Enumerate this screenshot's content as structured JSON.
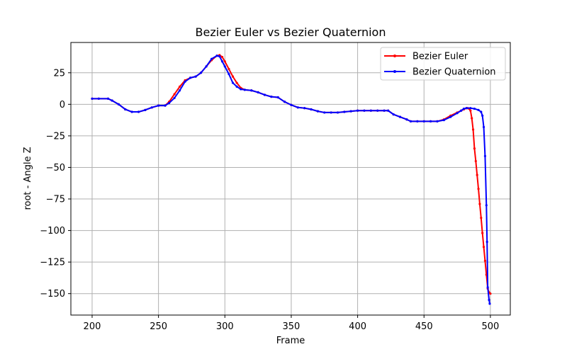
{
  "chart_data": {
    "type": "line",
    "title": "Bezier Euler vs Bezier Quaternion",
    "xlabel": "Frame",
    "ylabel": "root - Angle Z",
    "xlim": [
      184,
      515
    ],
    "ylim": [
      -167,
      49
    ],
    "xticks": [
      200,
      250,
      300,
      350,
      400,
      450,
      500
    ],
    "yticks": [
      25,
      0,
      -25,
      -50,
      -75,
      -100,
      -125,
      -150
    ],
    "grid": true,
    "legend_position": "top-right",
    "series": [
      {
        "name": "Bezier Euler",
        "color": "#ff0000",
        "points": [
          [
            200,
            4.5
          ],
          [
            205,
            4.5
          ],
          [
            212,
            4.5
          ],
          [
            215,
            3
          ],
          [
            220,
            0
          ],
          [
            225,
            -4
          ],
          [
            230,
            -6
          ],
          [
            235,
            -6
          ],
          [
            240,
            -4.5
          ],
          [
            245,
            -2.5
          ],
          [
            250,
            -1
          ],
          [
            255,
            -1
          ],
          [
            258,
            2
          ],
          [
            262,
            8
          ],
          [
            266,
            14
          ],
          [
            270,
            19
          ],
          [
            274,
            21
          ],
          [
            278,
            22
          ],
          [
            282,
            25
          ],
          [
            286,
            30
          ],
          [
            290,
            35
          ],
          [
            294,
            38.5
          ],
          [
            296,
            39
          ],
          [
            298,
            37.5
          ],
          [
            300,
            34
          ],
          [
            303,
            28
          ],
          [
            306,
            22
          ],
          [
            309,
            17
          ],
          [
            312,
            13
          ],
          [
            315,
            11.5
          ],
          [
            320,
            11
          ],
          [
            325,
            9.5
          ],
          [
            330,
            7.5
          ],
          [
            335,
            6
          ],
          [
            340,
            5.5
          ],
          [
            345,
            2
          ],
          [
            350,
            -0.5
          ],
          [
            355,
            -2.5
          ],
          [
            360,
            -3
          ],
          [
            365,
            -4
          ],
          [
            370,
            -5.5
          ],
          [
            375,
            -6.5
          ],
          [
            380,
            -6.5
          ],
          [
            385,
            -6.5
          ],
          [
            390,
            -6
          ],
          [
            395,
            -5.5
          ],
          [
            400,
            -5
          ],
          [
            405,
            -5
          ],
          [
            410,
            -5
          ],
          [
            415,
            -5
          ],
          [
            420,
            -5
          ],
          [
            423,
            -5
          ],
          [
            427,
            -8
          ],
          [
            432,
            -10
          ],
          [
            437,
            -12
          ],
          [
            440,
            -13.5
          ],
          [
            445,
            -13.5
          ],
          [
            450,
            -13.5
          ],
          [
            455,
            -13.5
          ],
          [
            460,
            -13.5
          ],
          [
            465,
            -12
          ],
          [
            470,
            -9
          ],
          [
            475,
            -6.5
          ],
          [
            478,
            -5
          ],
          [
            480,
            -4
          ],
          [
            482,
            -3
          ],
          [
            483,
            -3
          ],
          [
            484,
            -3.5
          ],
          [
            485,
            -5
          ],
          [
            486,
            -11
          ],
          [
            487,
            -20
          ],
          [
            488,
            -35
          ],
          [
            489,
            -45
          ],
          [
            490,
            -56
          ],
          [
            491,
            -67
          ],
          [
            492,
            -79
          ],
          [
            493,
            -90
          ],
          [
            494,
            -102
          ],
          [
            495,
            -113
          ],
          [
            496,
            -124
          ],
          [
            497,
            -135
          ],
          [
            498,
            -146
          ],
          [
            499,
            -149
          ],
          [
            500,
            -150
          ]
        ]
      },
      {
        "name": "Bezier Quaternion",
        "color": "#0000ff",
        "points": [
          [
            200,
            4.5
          ],
          [
            205,
            4.5
          ],
          [
            212,
            4.5
          ],
          [
            215,
            3
          ],
          [
            220,
            0
          ],
          [
            225,
            -4
          ],
          [
            230,
            -6
          ],
          [
            235,
            -6
          ],
          [
            240,
            -4.5
          ],
          [
            245,
            -2.5
          ],
          [
            250,
            -1
          ],
          [
            255,
            -1
          ],
          [
            258,
            1
          ],
          [
            262,
            5
          ],
          [
            266,
            11
          ],
          [
            270,
            18
          ],
          [
            274,
            21
          ],
          [
            278,
            22
          ],
          [
            282,
            25
          ],
          [
            286,
            30
          ],
          [
            290,
            36
          ],
          [
            294,
            38.5
          ],
          [
            296,
            38
          ],
          [
            298,
            34
          ],
          [
            300,
            30
          ],
          [
            303,
            24
          ],
          [
            306,
            17
          ],
          [
            309,
            14
          ],
          [
            312,
            12
          ],
          [
            315,
            11.5
          ],
          [
            320,
            11
          ],
          [
            325,
            9.5
          ],
          [
            330,
            7.5
          ],
          [
            335,
            6
          ],
          [
            340,
            5.5
          ],
          [
            345,
            2
          ],
          [
            350,
            -0.5
          ],
          [
            355,
            -2.5
          ],
          [
            360,
            -3
          ],
          [
            365,
            -4
          ],
          [
            370,
            -5.5
          ],
          [
            375,
            -6.5
          ],
          [
            380,
            -6.5
          ],
          [
            385,
            -6.5
          ],
          [
            390,
            -6
          ],
          [
            395,
            -5.5
          ],
          [
            400,
            -5
          ],
          [
            405,
            -5
          ],
          [
            410,
            -5
          ],
          [
            415,
            -5
          ],
          [
            420,
            -5
          ],
          [
            423,
            -5
          ],
          [
            427,
            -8
          ],
          [
            432,
            -10
          ],
          [
            437,
            -12
          ],
          [
            440,
            -13.5
          ],
          [
            445,
            -13.5
          ],
          [
            450,
            -13.5
          ],
          [
            455,
            -13.5
          ],
          [
            460,
            -13.5
          ],
          [
            465,
            -12.5
          ],
          [
            470,
            -10
          ],
          [
            475,
            -7
          ],
          [
            478,
            -5
          ],
          [
            480,
            -3.5
          ],
          [
            482,
            -3
          ],
          [
            485,
            -3
          ],
          [
            488,
            -3.5
          ],
          [
            491,
            -4.5
          ],
          [
            493,
            -6
          ],
          [
            494,
            -9
          ],
          [
            495,
            -18
          ],
          [
            496,
            -41
          ],
          [
            497,
            -80
          ],
          [
            497.5,
            -109
          ],
          [
            498,
            -145
          ],
          [
            499,
            -155
          ],
          [
            499.5,
            -158
          ]
        ]
      }
    ]
  }
}
